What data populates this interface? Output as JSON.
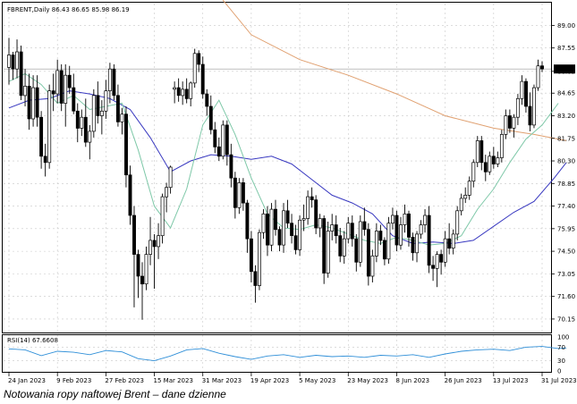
{
  "header": {
    "text": "FBRENT,Daily  86.43 86.65 85.98 86.19"
  },
  "caption": "Notowania ropy naftowej Brent – dane dzienne",
  "colors": {
    "bull": "#ffffff",
    "bear": "#000000",
    "wick": "#000000",
    "ma_short": "#7ec8a8",
    "ma_mid": "#3838c0",
    "ma_long": "#e0a070",
    "rsi": "#2f8fd8",
    "grid": "#c8c8c8",
    "border": "#000000",
    "price_label_bg": "#000000",
    "price_label_fg": "#ffffff"
  },
  "chart_data": [
    {
      "type": "candlestick",
      "title": "FBRENT,Daily",
      "last_price_label": "86.19",
      "ylim": [
        69.4,
        90.4
      ],
      "y_ticks": [
        "89.00",
        "87.55",
        "86.05",
        "84.65",
        "83.20",
        "81.75",
        "80.30",
        "78.85",
        "77.40",
        "75.95",
        "74.50",
        "73.05",
        "71.60",
        "70.15"
      ],
      "x_ticks": [
        {
          "i": 0,
          "label": "24 Jan 2023"
        },
        {
          "i": 12,
          "label": "9 Feb 2023"
        },
        {
          "i": 24,
          "label": "27 Feb 2023"
        },
        {
          "i": 36,
          "label": "15 Mar 2023"
        },
        {
          "i": 48,
          "label": "31 Mar 2023"
        },
        {
          "i": 60,
          "label": "19 Apr 2023"
        },
        {
          "i": 72,
          "label": "5 May 2023"
        },
        {
          "i": 84,
          "label": "23 May 2023"
        },
        {
          "i": 96,
          "label": "8 Jun 2023"
        },
        {
          "i": 108,
          "label": "26 Jun 2023"
        },
        {
          "i": 120,
          "label": "13 Jul 2023"
        },
        {
          "i": 132,
          "label": "31 Jul 2023"
        }
      ],
      "ohlc": [
        [
          86.3,
          88.2,
          85.2,
          87.1
        ],
        [
          87.1,
          87.3,
          85.5,
          86.2
        ],
        [
          86.2,
          88.1,
          85.6,
          87.3
        ],
        [
          87.3,
          87.7,
          84.2,
          84.5
        ],
        [
          84.5,
          86.2,
          83.8,
          85.1
        ],
        [
          85.1,
          85.9,
          82.3,
          83.0
        ],
        [
          83.0,
          85.8,
          82.5,
          85.0
        ],
        [
          85.0,
          85.8,
          82.5,
          83.1
        ],
        [
          83.1,
          83.5,
          79.8,
          80.6
        ],
        [
          80.6,
          81.4,
          79.3,
          80.2
        ],
        [
          80.2,
          85.2,
          79.8,
          84.8
        ],
        [
          84.8,
          85.9,
          83.5,
          84.6
        ],
        [
          84.6,
          86.8,
          84.0,
          86.1
        ],
        [
          86.1,
          86.5,
          83.5,
          84.0
        ],
        [
          84.0,
          86.5,
          82.5,
          85.8
        ],
        [
          85.8,
          86.4,
          84.6,
          85.0
        ],
        [
          85.0,
          85.9,
          83.3,
          83.5
        ],
        [
          83.5,
          84.0,
          81.5,
          82.4
        ],
        [
          82.4,
          83.6,
          81.9,
          83.1
        ],
        [
          83.1,
          84.3,
          81.2,
          81.5
        ],
        [
          81.5,
          82.6,
          80.4,
          82.2
        ],
        [
          82.2,
          84.9,
          81.8,
          84.5
        ],
        [
          84.5,
          85.4,
          82.7,
          83.2
        ],
        [
          83.2,
          84.2,
          82.0,
          83.5
        ],
        [
          83.5,
          85.5,
          83.0,
          84.8
        ],
        [
          84.8,
          86.6,
          84.0,
          86.2
        ],
        [
          86.2,
          86.5,
          84.2,
          84.5
        ],
        [
          84.5,
          85.2,
          82.5,
          82.8
        ],
        [
          82.8,
          83.7,
          82.0,
          83.3
        ],
        [
          83.3,
          83.8,
          78.6,
          79.4
        ],
        [
          79.4,
          80.0,
          76.2,
          76.8
        ],
        [
          76.8,
          77.4,
          70.9,
          74.3
        ],
        [
          74.3,
          74.6,
          71.5,
          72.9
        ],
        [
          72.9,
          73.8,
          70.1,
          72.4
        ],
        [
          72.4,
          74.8,
          72.0,
          74.3
        ],
        [
          74.3,
          76.7,
          73.6,
          75.2
        ],
        [
          75.2,
          75.6,
          72.1,
          74.8
        ],
        [
          74.8,
          76.3,
          74.0,
          75.5
        ],
        [
          75.5,
          78.2,
          75.0,
          78.0
        ],
        [
          78.0,
          78.9,
          77.0,
          78.6
        ],
        [
          78.6,
          80.0,
          78.2,
          79.9
        ],
        [
          84.9,
          85.4,
          84.0,
          85.0
        ],
        [
          85.0,
          85.6,
          84.1,
          84.5
        ],
        [
          84.5,
          85.4,
          83.9,
          84.9
        ],
        [
          84.9,
          85.6,
          84.0,
          84.3
        ],
        [
          84.3,
          85.4,
          83.8,
          85.3
        ],
        [
          85.3,
          87.5,
          85.0,
          87.2
        ],
        [
          87.2,
          87.4,
          86.0,
          86.5
        ],
        [
          86.5,
          87.0,
          84.3,
          84.6
        ],
        [
          84.6,
          84.9,
          83.2,
          83.8
        ],
        [
          83.8,
          84.5,
          82.0,
          82.3
        ],
        [
          82.3,
          82.8,
          80.8,
          81.2
        ],
        [
          81.2,
          81.8,
          80.3,
          80.6
        ],
        [
          80.6,
          82.9,
          80.4,
          82.6
        ],
        [
          82.6,
          82.9,
          80.0,
          80.7
        ],
        [
          80.7,
          81.4,
          78.6,
          79.2
        ],
        [
          79.2,
          79.6,
          76.6,
          77.3
        ],
        [
          77.3,
          79.2,
          76.9,
          78.9
        ],
        [
          78.9,
          79.2,
          77.1,
          77.6
        ],
        [
          77.6,
          77.8,
          74.4,
          75.3
        ],
        [
          75.3,
          75.8,
          72.5,
          73.2
        ],
        [
          73.2,
          73.6,
          71.2,
          72.3
        ],
        [
          72.3,
          75.9,
          72.0,
          75.7
        ],
        [
          75.7,
          77.2,
          75.3,
          76.9
        ],
        [
          76.9,
          77.4,
          74.2,
          74.9
        ],
        [
          74.9,
          77.6,
          74.5,
          77.2
        ],
        [
          77.2,
          77.8,
          75.5,
          75.9
        ],
        [
          75.9,
          76.1,
          74.5,
          74.9
        ],
        [
          74.9,
          77.6,
          74.4,
          77.1
        ],
        [
          77.1,
          77.8,
          76.0,
          76.3
        ],
        [
          76.3,
          76.9,
          75.0,
          75.5
        ],
        [
          75.5,
          76.2,
          74.3,
          74.6
        ],
        [
          74.6,
          76.8,
          74.2,
          76.5
        ],
        [
          76.5,
          77.5,
          75.8,
          76.6
        ],
        [
          76.6,
          78.4,
          76.2,
          78.0
        ],
        [
          78.0,
          78.6,
          77.3,
          77.8
        ],
        [
          77.8,
          78.1,
          75.6,
          76.0
        ],
        [
          76.0,
          76.9,
          75.4,
          76.6
        ],
        [
          76.6,
          76.8,
          72.4,
          73.1
        ],
        [
          73.1,
          76.4,
          72.8,
          75.8
        ],
        [
          75.8,
          76.9,
          75.2,
          76.2
        ],
        [
          76.2,
          76.8,
          75.0,
          75.5
        ],
        [
          75.5,
          76.0,
          73.8,
          74.2
        ],
        [
          74.2,
          75.8,
          73.7,
          75.3
        ],
        [
          75.3,
          76.7,
          75.0,
          76.3
        ],
        [
          76.3,
          76.8,
          74.8,
          75.3
        ],
        [
          75.3,
          75.6,
          73.2,
          73.8
        ],
        [
          73.8,
          76.8,
          73.5,
          76.4
        ],
        [
          76.4,
          77.3,
          75.5,
          75.9
        ],
        [
          75.9,
          76.3,
          72.3,
          72.9
        ],
        [
          72.9,
          74.6,
          72.5,
          74.2
        ],
        [
          74.2,
          76.3,
          73.8,
          75.8
        ],
        [
          75.8,
          76.2,
          74.9,
          75.2
        ],
        [
          75.2,
          75.4,
          73.6,
          74.0
        ],
        [
          74.0,
          76.7,
          73.7,
          76.3
        ],
        [
          76.3,
          77.3,
          75.9,
          76.8
        ],
        [
          76.8,
          77.1,
          74.5,
          74.9
        ],
        [
          74.9,
          76.7,
          74.6,
          76.2
        ],
        [
          76.2,
          77.5,
          75.7,
          76.9
        ],
        [
          76.9,
          77.1,
          74.8,
          75.4
        ],
        [
          75.4,
          75.7,
          73.9,
          74.4
        ],
        [
          74.4,
          75.8,
          73.8,
          75.6
        ],
        [
          75.6,
          76.5,
          75.3,
          76.2
        ],
        [
          76.2,
          77.2,
          75.7,
          76.8
        ],
        [
          76.8,
          77.4,
          73.1,
          73.6
        ],
        [
          73.6,
          74.2,
          72.6,
          73.4
        ],
        [
          73.4,
          74.5,
          72.2,
          74.3
        ],
        [
          74.3,
          74.6,
          73.0,
          73.8
        ],
        [
          73.8,
          75.8,
          73.5,
          75.3
        ],
        [
          75.3,
          76.3,
          74.3,
          74.7
        ],
        [
          74.7,
          75.9,
          74.3,
          75.6
        ],
        [
          75.6,
          77.4,
          75.2,
          77.1
        ],
        [
          77.1,
          78.2,
          76.8,
          77.9
        ],
        [
          77.9,
          78.6,
          77.6,
          78.1
        ],
        [
          78.1,
          79.3,
          77.8,
          79.0
        ],
        [
          79.0,
          80.4,
          78.6,
          80.2
        ],
        [
          80.2,
          81.9,
          79.9,
          81.6
        ],
        [
          81.6,
          81.9,
          79.7,
          80.2
        ],
        [
          80.2,
          80.7,
          79.0,
          79.6
        ],
        [
          79.6,
          80.9,
          79.4,
          80.6
        ],
        [
          80.6,
          81.2,
          79.8,
          80.1
        ],
        [
          80.1,
          80.9,
          79.9,
          80.5
        ],
        [
          80.5,
          82.3,
          80.2,
          82.0
        ],
        [
          82.0,
          83.6,
          81.7,
          83.2
        ],
        [
          83.2,
          83.6,
          82.1,
          82.4
        ],
        [
          82.4,
          83.3,
          81.8,
          83.1
        ],
        [
          83.1,
          84.6,
          82.6,
          84.3
        ],
        [
          84.3,
          85.8,
          83.9,
          85.4
        ],
        [
          85.4,
          85.6,
          83.4,
          83.8
        ],
        [
          83.8,
          84.7,
          82.2,
          82.6
        ],
        [
          82.6,
          85.2,
          82.4,
          85.0
        ],
        [
          85.0,
          86.8,
          84.8,
          86.4
        ],
        [
          86.4,
          86.7,
          86.0,
          86.2
        ]
      ],
      "ma_short": [
        [
          0,
          85.4
        ],
        [
          4,
          85.9
        ],
        [
          8,
          85.2
        ],
        [
          12,
          84.0
        ],
        [
          16,
          84.5
        ],
        [
          20,
          83.6
        ],
        [
          24,
          83.8
        ],
        [
          28,
          84.0
        ],
        [
          32,
          81.0
        ],
        [
          36,
          77.4
        ],
        [
          40,
          76.0
        ],
        [
          44,
          78.5
        ],
        [
          48,
          82.6
        ],
        [
          52,
          84.2
        ],
        [
          56,
          82.0
        ],
        [
          60,
          79.2
        ],
        [
          64,
          76.9
        ],
        [
          68,
          76.0
        ],
        [
          72,
          75.9
        ],
        [
          76,
          76.2
        ],
        [
          80,
          76.0
        ],
        [
          84,
          75.6
        ],
        [
          88,
          75.2
        ],
        [
          92,
          75.0
        ],
        [
          96,
          75.4
        ],
        [
          100,
          75.2
        ],
        [
          104,
          74.9
        ],
        [
          108,
          75.0
        ],
        [
          112,
          75.5
        ],
        [
          116,
          77.2
        ],
        [
          120,
          78.5
        ],
        [
          124,
          80.2
        ],
        [
          128,
          81.7
        ],
        [
          132,
          82.6
        ],
        [
          136,
          84.0
        ]
      ],
      "ma_mid": [
        [
          0,
          83.7
        ],
        [
          5,
          84.2
        ],
        [
          10,
          84.3
        ],
        [
          15,
          84.8
        ],
        [
          20,
          84.6
        ],
        [
          25,
          84.3
        ],
        [
          30,
          83.6
        ],
        [
          35,
          81.8
        ],
        [
          40,
          79.6
        ],
        [
          45,
          80.3
        ],
        [
          50,
          80.7
        ],
        [
          55,
          80.6
        ],
        [
          60,
          80.4
        ],
        [
          65,
          80.6
        ],
        [
          70,
          80.1
        ],
        [
          75,
          79.1
        ],
        [
          80,
          78.1
        ],
        [
          85,
          77.6
        ],
        [
          90,
          76.9
        ],
        [
          95,
          75.5
        ],
        [
          100,
          75.0
        ],
        [
          105,
          75.1
        ],
        [
          110,
          75.0
        ],
        [
          115,
          75.2
        ],
        [
          120,
          76.1
        ],
        [
          125,
          77.0
        ],
        [
          130,
          77.7
        ],
        [
          135,
          79.2
        ],
        [
          138,
          80.2
        ]
      ],
      "ma_long": [
        [
          48,
          92.2
        ],
        [
          60,
          88.4
        ],
        [
          72,
          86.8
        ],
        [
          84,
          85.8
        ],
        [
          96,
          84.6
        ],
        [
          108,
          83.2
        ],
        [
          120,
          82.4
        ],
        [
          130,
          82.0
        ],
        [
          138,
          81.6
        ]
      ],
      "rsi": {
        "label": "RSI(14) 67.6608",
        "ylim": [
          0,
          100
        ],
        "levels": [
          100,
          70,
          30,
          0
        ],
        "values": [
          [
            0,
            65
          ],
          [
            4,
            62
          ],
          [
            8,
            45
          ],
          [
            12,
            58
          ],
          [
            16,
            55
          ],
          [
            20,
            48
          ],
          [
            24,
            60
          ],
          [
            28,
            56
          ],
          [
            32,
            36
          ],
          [
            36,
            30
          ],
          [
            40,
            44
          ],
          [
            44,
            62
          ],
          [
            48,
            66
          ],
          [
            52,
            52
          ],
          [
            56,
            42
          ],
          [
            60,
            34
          ],
          [
            64,
            44
          ],
          [
            68,
            48
          ],
          [
            72,
            40
          ],
          [
            76,
            46
          ],
          [
            80,
            42
          ],
          [
            84,
            44
          ],
          [
            88,
            40
          ],
          [
            92,
            46
          ],
          [
            96,
            44
          ],
          [
            100,
            48
          ],
          [
            104,
            40
          ],
          [
            108,
            50
          ],
          [
            112,
            58
          ],
          [
            116,
            62
          ],
          [
            120,
            64
          ],
          [
            124,
            60
          ],
          [
            128,
            70
          ],
          [
            132,
            72
          ],
          [
            136,
            66
          ],
          [
            138,
            67.66
          ]
        ]
      }
    }
  ]
}
